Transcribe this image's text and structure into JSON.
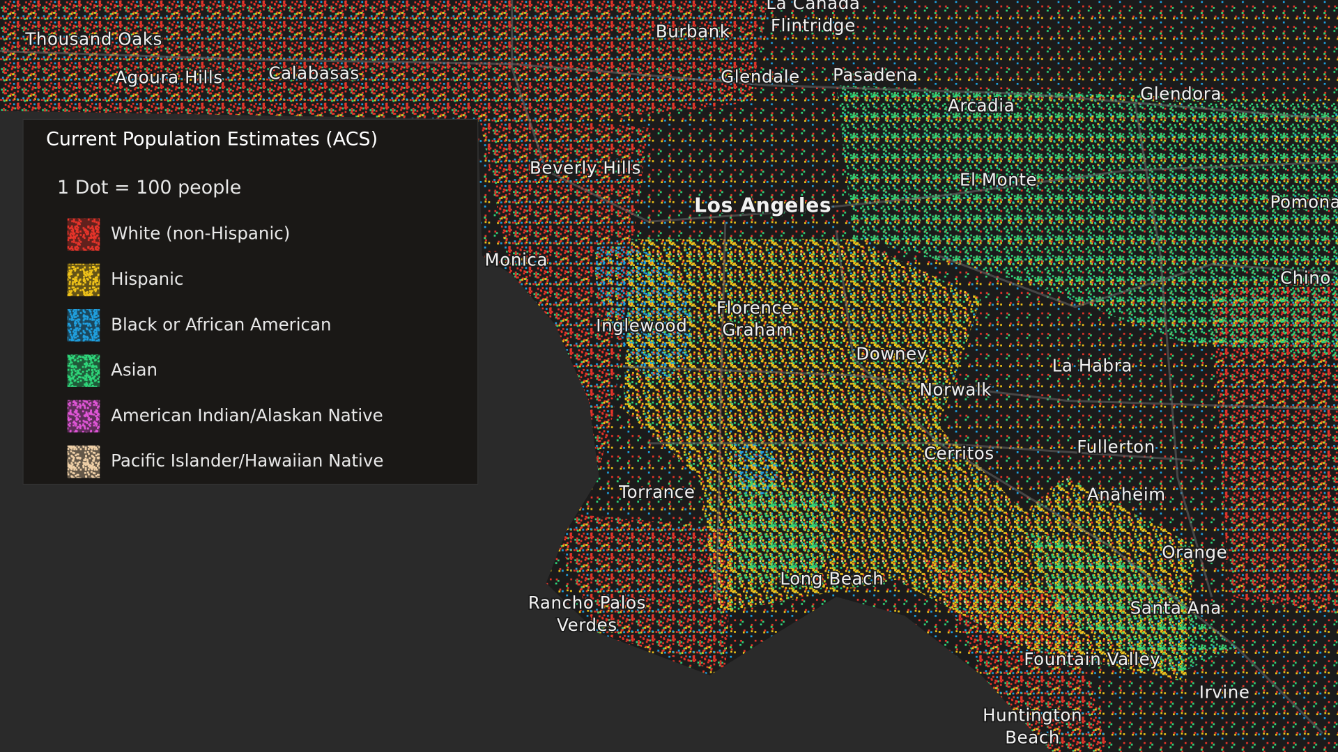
{
  "legend": {
    "title": "Current Population Estimates (ACS)",
    "subtitle": "1 Dot = 100 people",
    "items": [
      {
        "label": "White (non-Hispanic)",
        "color": "#e8352a"
      },
      {
        "label": "Hispanic",
        "color": "#f0c419"
      },
      {
        "label": "Black or African American",
        "color": "#1fa0e0"
      },
      {
        "label": "Asian",
        "color": "#2fd67a"
      },
      {
        "label": "American Indian/Alaskan Native",
        "color": "#e055d8"
      },
      {
        "label": "Pacific Islander/Hawaiian Native",
        "color": "#f2d2a8"
      }
    ]
  },
  "places": [
    {
      "lines": [
        "Thousand Oaks"
      ]
    },
    {
      "lines": [
        "Agoura Hills"
      ]
    },
    {
      "lines": [
        "Calabasas"
      ]
    },
    {
      "lines": [
        "Burbank"
      ]
    },
    {
      "lines": [
        "La Cañada",
        "Flintridge"
      ]
    },
    {
      "lines": [
        "Glendale"
      ]
    },
    {
      "lines": [
        "Pasadena"
      ]
    },
    {
      "lines": [
        "Arcadia"
      ]
    },
    {
      "lines": [
        "Glendora"
      ]
    },
    {
      "lines": [
        "Beverly Hills"
      ]
    },
    {
      "lines": [
        "El Monte"
      ]
    },
    {
      "lines": [
        "Los Angeles"
      ]
    },
    {
      "lines": [
        "Pomona"
      ]
    },
    {
      "lines": [
        "Monica"
      ]
    },
    {
      "lines": [
        "Chino"
      ]
    },
    {
      "lines": [
        "Florence-",
        "Graham"
      ]
    },
    {
      "lines": [
        "Inglewood"
      ]
    },
    {
      "lines": [
        "Downey"
      ]
    },
    {
      "lines": [
        "La Habra"
      ]
    },
    {
      "lines": [
        "Norwalk"
      ]
    },
    {
      "lines": [
        "Fullerton"
      ]
    },
    {
      "lines": [
        "Cerritos"
      ]
    },
    {
      "lines": [
        "Torrance"
      ]
    },
    {
      "lines": [
        "Anaheim"
      ]
    },
    {
      "lines": [
        "Orange"
      ]
    },
    {
      "lines": [
        "Long Beach"
      ]
    },
    {
      "lines": [
        "Rancho Palos",
        "Verdes"
      ]
    },
    {
      "lines": [
        "Santa Ana"
      ]
    },
    {
      "lines": [
        "Fountain Valley"
      ]
    },
    {
      "lines": [
        "Irvine"
      ]
    },
    {
      "lines": [
        "Huntington",
        "Beach"
      ]
    }
  ]
}
